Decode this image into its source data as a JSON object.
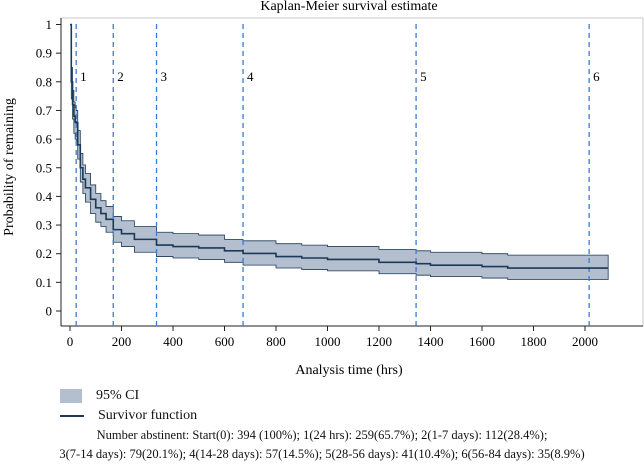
{
  "chart_data": {
    "type": "line",
    "title": "Kaplan-Meier survival estimate",
    "xlabel": "Analysis time (hrs)",
    "ylabel": "Probability of remaining",
    "xlim": [
      0,
      2140
    ],
    "ylim": [
      0,
      1
    ],
    "xticks": [
      0,
      200,
      400,
      600,
      800,
      1000,
      1200,
      1400,
      1600,
      1800,
      2000
    ],
    "yticks": [
      0,
      0.1,
      0.2,
      0.3,
      0.4,
      0.5,
      0.6,
      0.7,
      0.8,
      0.9,
      1
    ],
    "series": [
      {
        "name": "Survivor function",
        "x": [
          0,
          5,
          10,
          15,
          20,
          24,
          30,
          40,
          50,
          60,
          80,
          100,
          120,
          140,
          168,
          200,
          250,
          336,
          400,
          500,
          600,
          672,
          800,
          900,
          1000,
          1200,
          1344,
          1400,
          1600,
          1700,
          1800,
          2000,
          2090
        ],
        "y": [
          1.0,
          0.8,
          0.72,
          0.68,
          0.66,
          0.657,
          0.58,
          0.5,
          0.46,
          0.43,
          0.39,
          0.36,
          0.34,
          0.32,
          0.284,
          0.27,
          0.25,
          0.23,
          0.225,
          0.22,
          0.21,
          0.201,
          0.19,
          0.185,
          0.18,
          0.17,
          0.165,
          0.16,
          0.155,
          0.15,
          0.15,
          0.15,
          0.15
        ]
      },
      {
        "name": "95% CI",
        "x": [
          0,
          5,
          10,
          15,
          20,
          24,
          30,
          40,
          50,
          60,
          80,
          100,
          120,
          140,
          168,
          200,
          250,
          336,
          400,
          500,
          600,
          672,
          800,
          900,
          1000,
          1200,
          1344,
          1400,
          1600,
          1700,
          1800,
          2000,
          2090
        ],
        "lower": [
          1.0,
          0.74,
          0.67,
          0.62,
          0.6,
          0.59,
          0.53,
          0.45,
          0.41,
          0.38,
          0.34,
          0.31,
          0.295,
          0.275,
          0.24,
          0.225,
          0.205,
          0.19,
          0.185,
          0.18,
          0.17,
          0.16,
          0.15,
          0.145,
          0.14,
          0.13,
          0.125,
          0.12,
          0.115,
          0.11,
          0.11,
          0.11,
          0.11
        ],
        "upper": [
          1.0,
          0.85,
          0.77,
          0.73,
          0.71,
          0.7,
          0.63,
          0.55,
          0.51,
          0.48,
          0.44,
          0.41,
          0.385,
          0.365,
          0.33,
          0.315,
          0.295,
          0.275,
          0.27,
          0.265,
          0.25,
          0.245,
          0.235,
          0.23,
          0.225,
          0.215,
          0.21,
          0.205,
          0.2,
          0.195,
          0.195,
          0.195,
          0.195
        ]
      }
    ],
    "reference_lines": [
      {
        "x": 24,
        "label": "1"
      },
      {
        "x": 168,
        "label": "2"
      },
      {
        "x": 336,
        "label": "3"
      },
      {
        "x": 672,
        "label": "4"
      },
      {
        "x": 1344,
        "label": "5"
      },
      {
        "x": 2016,
        "label": "6"
      }
    ],
    "colors": {
      "line": "#1c3a57",
      "ci_fill": "#b3bfcf",
      "reference": "#3a7bd5"
    }
  },
  "legend": {
    "ci_label": "95% CI",
    "survivor_label": "Survivor function"
  },
  "footnote": {
    "line1": "Number abstinent: Start(0): 394 (100%); 1(24 hrs): 259(65.7%); 2(1-7 days): 112(28.4%);",
    "line2": "3(7-14 days): 79(20.1%); 4(14-28 days): 57(14.5%); 5(28-56 days): 41(10.4%); 6(56-84 days): 35(8.9%)"
  }
}
